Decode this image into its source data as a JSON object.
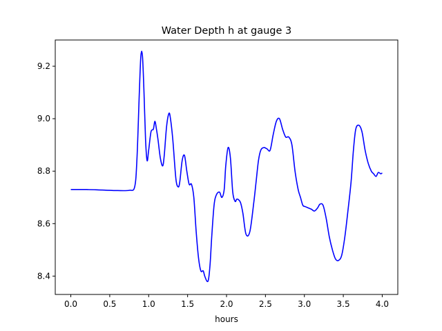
{
  "chart_data": {
    "type": "line",
    "title": "Water Depth h at gauge 3",
    "xlabel": "hours",
    "ylabel": "",
    "xlim": [
      -0.2,
      4.2
    ],
    "ylim": [
      8.33,
      9.3
    ],
    "xticks": [
      0.0,
      0.5,
      1.0,
      1.5,
      2.0,
      2.5,
      3.0,
      3.5,
      4.0
    ],
    "xtick_labels": [
      "0.0",
      "0.5",
      "1.0",
      "1.5",
      "2.0",
      "2.5",
      "3.0",
      "3.5",
      "4.0"
    ],
    "yticks": [
      8.4,
      8.6,
      8.8,
      9.0,
      9.2
    ],
    "ytick_labels": [
      "8.4",
      "8.6",
      "8.8",
      "9.0",
      "9.2"
    ],
    "grid": false,
    "series": [
      {
        "color": "#0000ff",
        "x": [
          0.0,
          0.2,
          0.4,
          0.6,
          0.75,
          0.82,
          0.85,
          0.88,
          0.9,
          0.92,
          0.94,
          0.96,
          0.98,
          1.0,
          1.03,
          1.06,
          1.08,
          1.1,
          1.12,
          1.15,
          1.18,
          1.2,
          1.23,
          1.26,
          1.28,
          1.31,
          1.35,
          1.38,
          1.4,
          1.43,
          1.46,
          1.49,
          1.52,
          1.55,
          1.58,
          1.61,
          1.64,
          1.67,
          1.7,
          1.72,
          1.75,
          1.77,
          1.79,
          1.81,
          1.84,
          1.87,
          1.91,
          1.94,
          1.97,
          1.99,
          2.02,
          2.05,
          2.08,
          2.11,
          2.13,
          2.15,
          2.18,
          2.21,
          2.25,
          2.3,
          2.35,
          2.38,
          2.41,
          2.44,
          2.48,
          2.52,
          2.56,
          2.6,
          2.64,
          2.68,
          2.72,
          2.76,
          2.8,
          2.84,
          2.88,
          2.92,
          2.95,
          2.98,
          3.01,
          3.05,
          3.09,
          3.13,
          3.17,
          3.2,
          3.24,
          3.28,
          3.32,
          3.36,
          3.4,
          3.44,
          3.48,
          3.52,
          3.56,
          3.6,
          3.63,
          3.66,
          3.7,
          3.74,
          3.78,
          3.82,
          3.86,
          3.89,
          3.92,
          3.95,
          3.98,
          4.0
        ],
        "y": [
          8.73,
          8.73,
          8.728,
          8.726,
          8.727,
          8.74,
          8.85,
          9.1,
          9.24,
          9.24,
          9.1,
          8.92,
          8.84,
          8.88,
          8.95,
          8.96,
          8.99,
          8.96,
          8.92,
          8.85,
          8.82,
          8.86,
          8.97,
          9.02,
          9.0,
          8.92,
          8.77,
          8.74,
          8.76,
          8.84,
          8.86,
          8.8,
          8.75,
          8.75,
          8.7,
          8.57,
          8.47,
          8.42,
          8.42,
          8.4,
          8.38,
          8.39,
          8.45,
          8.55,
          8.67,
          8.71,
          8.72,
          8.7,
          8.73,
          8.82,
          8.89,
          8.85,
          8.72,
          8.685,
          8.693,
          8.692,
          8.68,
          8.64,
          8.56,
          8.57,
          8.68,
          8.76,
          8.84,
          8.88,
          8.89,
          8.885,
          8.88,
          8.94,
          8.99,
          9.0,
          8.96,
          8.93,
          8.93,
          8.9,
          8.8,
          8.73,
          8.7,
          8.67,
          8.665,
          8.66,
          8.655,
          8.648,
          8.66,
          8.674,
          8.67,
          8.62,
          8.55,
          8.5,
          8.465,
          8.46,
          8.48,
          8.55,
          8.65,
          8.76,
          8.88,
          8.96,
          8.975,
          8.95,
          8.88,
          8.83,
          8.8,
          8.79,
          8.78,
          8.795,
          8.79,
          8.793
        ]
      }
    ]
  }
}
